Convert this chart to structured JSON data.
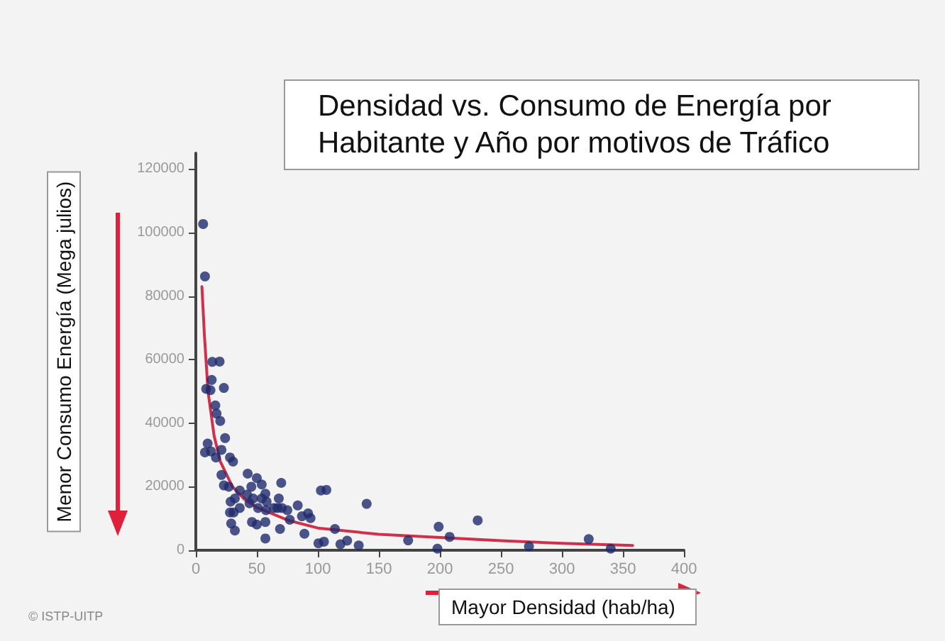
{
  "chart_data": {
    "type": "scatter",
    "title": "Densidad vs. Consumo de Energía por Habitante y Año por motivos de Tráfico",
    "xlabel": "Mayor Densidad (hab/ha)",
    "ylabel": "Menor Consumo Energía (Mega julios)",
    "annotations": [
      "© ISTP-UITP"
    ],
    "xlim": [
      0,
      400
    ],
    "xticks": [
      0,
      50,
      100,
      150,
      200,
      250,
      300,
      350,
      400
    ],
    "ylim": [
      0,
      125000
    ],
    "yticks": [
      0,
      20000,
      40000,
      60000,
      80000,
      100000,
      120000
    ],
    "grid": false,
    "marker": "circle",
    "series": [
      {
        "color": "#1f2a6b",
        "x": [
          6,
          7.5,
          8.5,
          7.5,
          9.7,
          13.5,
          13,
          12,
          12.5,
          16,
          17,
          19.5,
          20,
          21,
          23,
          24,
          16.5,
          21,
          23,
          28,
          30.5,
          27,
          28.5,
          28,
          29,
          32,
          31,
          32,
          36,
          36,
          42.5,
          42,
          44,
          45.5,
          47,
          46,
          50,
          50,
          51,
          54,
          54,
          57,
          57.5,
          57,
          57,
          58,
          64,
          67,
          68,
          70,
          69,
          70.5,
          75,
          77,
          83.5,
          87,
          89,
          92,
          94,
          100.5,
          102.5,
          107,
          140,
          105,
          114,
          118.5,
          124,
          133.5,
          174,
          199,
          198,
          208,
          231,
          273,
          322,
          340
        ],
        "values": [
          102700,
          86200,
          50800,
          30800,
          33600,
          59300,
          53600,
          50400,
          31100,
          45600,
          43000,
          59400,
          40700,
          31600,
          51100,
          35300,
          29200,
          23700,
          20400,
          29200,
          27900,
          20000,
          15300,
          11900,
          8400,
          6200,
          11900,
          16300,
          18800,
          13300,
          24100,
          17500,
          14800,
          20000,
          16300,
          8900,
          22700,
          8100,
          13300,
          20700,
          16300,
          17800,
          12600,
          8900,
          3700,
          15300,
          13300,
          13300,
          16300,
          21200,
          6700,
          13300,
          12600,
          9600,
          14100,
          10700,
          5200,
          11600,
          10100,
          2200,
          18800,
          19000,
          14600,
          2700,
          6700,
          1900,
          3000,
          1500,
          3100,
          7400,
          500,
          4200,
          9400,
          1200,
          3500,
          500
        ]
      },
      {
        "type": "line",
        "color": "#d0304a",
        "marker": "none",
        "line_style": "solid",
        "x": [
          5,
          7,
          10,
          15,
          20,
          30,
          40,
          50,
          75,
          100,
          150,
          200,
          250,
          300,
          358
        ],
        "values": [
          83000,
          68000,
          50000,
          36000,
          28000,
          20000,
          16000,
          13500,
          9500,
          7000,
          5000,
          4000,
          3000,
          2200,
          1500
        ]
      }
    ]
  }
}
